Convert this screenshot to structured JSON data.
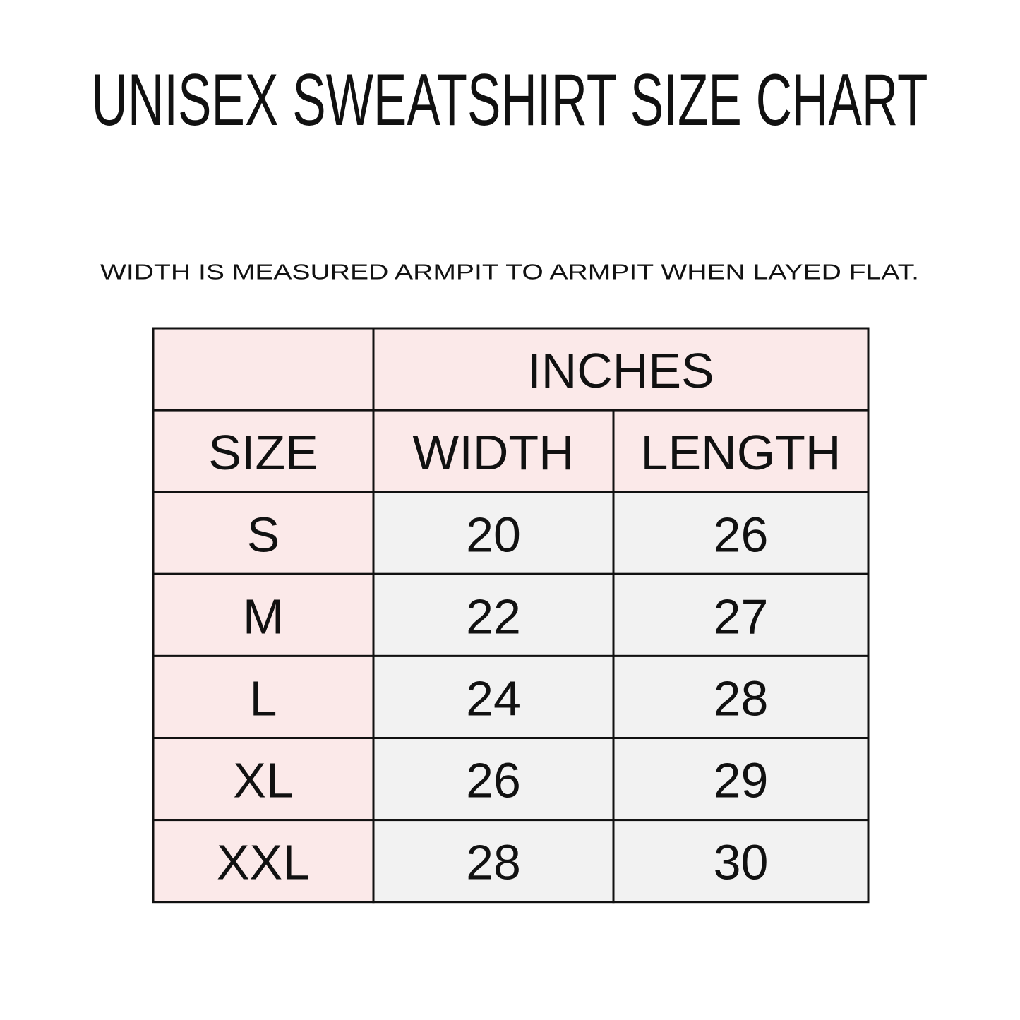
{
  "header": {
    "title": "UNISEX SWEATSHIRT SIZE CHART",
    "note": "WIDTH IS MEASURED ARMPIT TO ARMPIT WHEN LAYED FLAT."
  },
  "table": {
    "group_header": "INCHES",
    "columns": [
      "SIZE",
      "WIDTH",
      "LENGTH"
    ],
    "rows": [
      [
        "S",
        20,
        26
      ],
      [
        "M",
        22,
        27
      ],
      [
        "L",
        24,
        28
      ],
      [
        "XL",
        26,
        29
      ],
      [
        "XXL",
        28,
        30
      ]
    ]
  }
}
